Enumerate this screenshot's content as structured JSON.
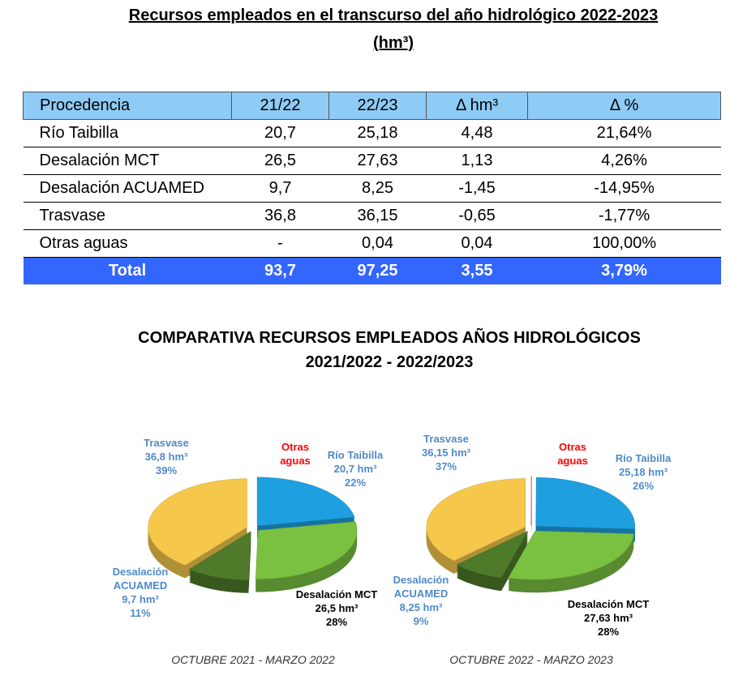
{
  "title": "Recursos empleados en el transcurso del año hidrológico 2022-2023",
  "unit": "(hm³)",
  "table": {
    "columns": [
      "Procedencia",
      "21/22",
      "22/23",
      "Δ hm³",
      "Δ %"
    ],
    "rows": [
      [
        "Río Taibilla",
        "20,7",
        "25,18",
        "4,48",
        "21,64%"
      ],
      [
        "Desalación MCT",
        "26,5",
        "27,63",
        "1,13",
        "4,26%"
      ],
      [
        "Desalación ACUAMED",
        "9,7",
        "8,25",
        "-1,45",
        "-14,95%"
      ],
      [
        "Trasvase",
        "36,8",
        "36,15",
        "-0,65",
        "-1,77%"
      ],
      [
        "Otras aguas",
        "-",
        "0,04",
        "0,04",
        "100,00%"
      ]
    ],
    "total": [
      "Total",
      "93,7",
      "97,25",
      "3,55",
      "3,79%"
    ]
  },
  "comparison_title": "COMPARATIVA RECURSOS EMPLEADOS AÑOS HIDROLÓGICOS",
  "comparison_subtitle": "2021/2022 - 2022/2023",
  "chart_data": [
    {
      "type": "pie",
      "caption": "OCTUBRE 2021 - MARZO 2022",
      "categories": [
        "Otras aguas",
        "Río Taibilla",
        "Desalación MCT",
        "Desalación ACUAMED",
        "Trasvase"
      ],
      "values": [
        null,
        20.7,
        26.5,
        9.7,
        36.8
      ],
      "value_labels": [
        null,
        "20,7 hm³",
        "26,5 hm³",
        "9,7 hm³",
        "36,8 hm³"
      ],
      "shares": [
        null,
        22,
        28,
        11,
        39
      ],
      "share_labels": [
        null,
        "22%",
        "28%",
        "11%",
        "39%"
      ],
      "colors": [
        "#cc1a10",
        "#1ea0e0",
        "#7ac142",
        "#4e7a2a",
        "#f5c84c"
      ]
    },
    {
      "type": "pie",
      "caption": "OCTUBRE 2022 - MARZO 2023",
      "categories": [
        "Otras aguas",
        "Río Taibilla",
        "Desalación MCT",
        "Desalación ACUAMED",
        "Trasvase"
      ],
      "values": [
        0.04,
        25.18,
        27.63,
        8.25,
        36.15
      ],
      "value_labels": [
        null,
        "25,18 hm³",
        "27,63 hm³",
        "8,25 hm³",
        "36,15 hm³"
      ],
      "shares": [
        null,
        26,
        28,
        9,
        37
      ],
      "share_labels": [
        null,
        "26%",
        "28%",
        "9%",
        "37%"
      ],
      "colors": [
        "#cc1a10",
        "#1ea0e0",
        "#7ac142",
        "#4e7a2a",
        "#f5c84c"
      ]
    }
  ]
}
